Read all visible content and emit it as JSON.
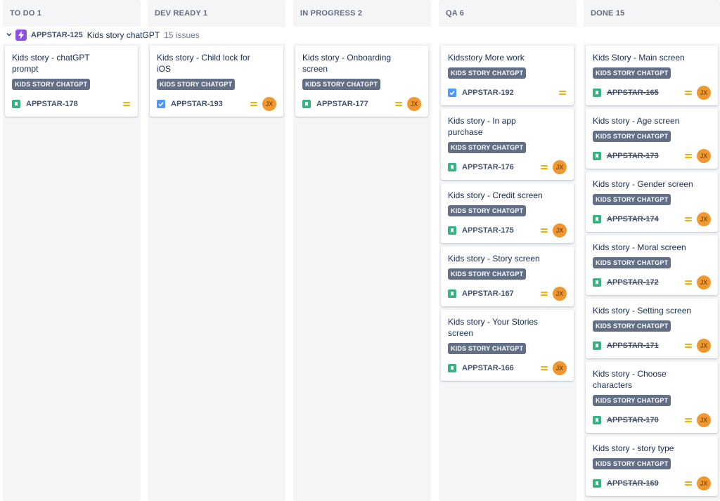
{
  "colors": {
    "story": "#36b37e",
    "task": "#4c9aff",
    "epic": "#904ee2",
    "priority": "#ffab00",
    "avatar": "#f0982f"
  },
  "columns": [
    {
      "label": "TO DO 1"
    },
    {
      "label": "DEV READY 1"
    },
    {
      "label": "IN PROGRESS 2"
    },
    {
      "label": "QA 6"
    },
    {
      "label": "DONE 15"
    }
  ],
  "swimlane": {
    "epic_key": "APPSTAR-125",
    "epic_name": "Kids story chatGPT",
    "issue_count": "15 issues",
    "icon": "lightning-icon"
  },
  "epic_label": "KIDS STORY CHATGPT",
  "avatar_initials": "JX",
  "cards": {
    "todo": [
      {
        "title": "Kids story - chatGPT prompt",
        "key": "APPSTAR-178"
      }
    ],
    "devready": [
      {
        "title": "Kids story - Child lock for iOS",
        "key": "APPSTAR-193"
      }
    ],
    "inprogress": [
      {
        "title": "Kids story - Onboarding screen",
        "key": "APPSTAR-177"
      }
    ],
    "qa": [
      {
        "title": "Kidsstory More work",
        "key": "APPSTAR-192"
      },
      {
        "title": "Kids story - In app purchase",
        "key": "APPSTAR-176"
      },
      {
        "title": "Kids story - Credit screen",
        "key": "APPSTAR-175"
      },
      {
        "title": "Kids story - Story screen",
        "key": "APPSTAR-167"
      },
      {
        "title": "Kids story - Your Stories screen",
        "key": "APPSTAR-166"
      }
    ],
    "done": [
      {
        "title": "Kids Story - Main screen",
        "key": "APPSTAR-165"
      },
      {
        "title": "Kids story - Age screen",
        "key": "APPSTAR-173"
      },
      {
        "title": "Kids story - Gender screen",
        "key": "APPSTAR-174"
      },
      {
        "title": "Kids story - Moral screen",
        "key": "APPSTAR-172"
      },
      {
        "title": "Kids story - Setting screen",
        "key": "APPSTAR-171"
      },
      {
        "title": "Kids story - Choose characters",
        "key": "APPSTAR-170"
      },
      {
        "title": "Kids story - story type",
        "key": "APPSTAR-169"
      }
    ]
  }
}
